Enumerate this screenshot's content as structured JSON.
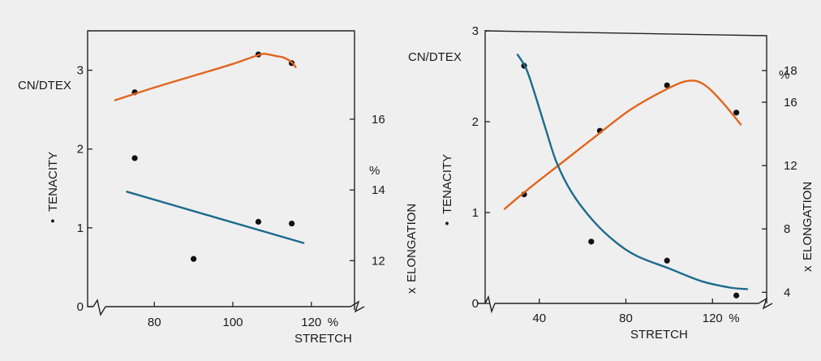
{
  "colors": {
    "background": "#efefef",
    "tenacity_curve": "#e2651e",
    "elongation_curve": "#1c6b8c",
    "points": "#111111",
    "axes": "#222222"
  },
  "chart_data": [
    {
      "type": "scatter",
      "left_axis": {
        "label": "TENACITY",
        "label_marker": "•",
        "unit": "CN/DTEX",
        "ylim": [
          0,
          3.5
        ],
        "ticks": [
          0,
          1,
          2,
          3
        ]
      },
      "right_axis": {
        "label": "ELONGATION",
        "label_marker": "x",
        "unit": "%",
        "ylim": [
          10.7,
          18.5
        ],
        "ticks": [
          12,
          14,
          16
        ]
      },
      "x_axis": {
        "label": "STRETCH",
        "unit": "%",
        "xlim": [
          63,
          131
        ],
        "ticks": [
          80,
          100,
          120
        ],
        "axis_break": true
      },
      "series": [
        {
          "axis": "left",
          "style": "points",
          "x": [
            75,
            106.5,
            115
          ],
          "y": [
            2.72,
            3.2,
            3.09
          ]
        },
        {
          "axis": "left",
          "style": "curve",
          "x": [
            70,
            80,
            90,
            100,
            107,
            109,
            111,
            113,
            115,
            116
          ],
          "y": [
            2.62,
            2.78,
            2.93,
            3.08,
            3.2,
            3.2,
            3.18,
            3.16,
            3.1,
            3.04
          ]
        },
        {
          "axis": "right",
          "style": "points",
          "x": [
            75,
            90,
            106.5,
            115
          ],
          "y": [
            14.9,
            12.05,
            13.1,
            13.05
          ]
        },
        {
          "axis": "right",
          "style": "curve",
          "x": [
            73,
            118
          ],
          "y": [
            13.95,
            12.5
          ]
        }
      ]
    },
    {
      "type": "scatter",
      "left_axis": {
        "label": "TENACITY",
        "label_marker": "•",
        "unit": "CN/DTEX",
        "ylim": [
          0,
          3
        ],
        "ticks": [
          0,
          1,
          2,
          3
        ]
      },
      "right_axis": {
        "label": "ELONGATION",
        "label_marker": "x",
        "unit": "%",
        "ylim": [
          3.3,
          20.2
        ],
        "ticks": [
          4,
          8,
          12,
          16,
          18
        ]
      },
      "x_axis": {
        "label": "STRETCH",
        "unit": "%",
        "xlim": [
          15,
          145
        ],
        "ticks": [
          40,
          80,
          120
        ],
        "axis_break": true
      },
      "series": [
        {
          "axis": "left",
          "style": "points",
          "x": [
            33,
            68,
            99,
            131
          ],
          "y": [
            1.2,
            1.9,
            2.4,
            2.1
          ]
        },
        {
          "axis": "left",
          "style": "curve",
          "x": [
            24,
            35,
            50,
            65,
            82,
            99,
            109,
            116,
            124,
            133
          ],
          "y": [
            1.04,
            1.26,
            1.54,
            1.82,
            2.13,
            2.36,
            2.45,
            2.41,
            2.23,
            1.97
          ]
        },
        {
          "axis": "right",
          "style": "points",
          "x": [
            33,
            64,
            99,
            131
          ],
          "y": [
            18.3,
            7.2,
            6.0,
            3.8
          ]
        },
        {
          "axis": "right",
          "style": "curve",
          "x": [
            30,
            34,
            38,
            43,
            48,
            55,
            65,
            75,
            85,
            100,
            115,
            128,
            136
          ],
          "y": [
            19.0,
            18.1,
            16.5,
            14.3,
            12.2,
            10.3,
            8.5,
            7.2,
            6.3,
            5.5,
            4.7,
            4.3,
            4.2
          ]
        }
      ]
    }
  ]
}
